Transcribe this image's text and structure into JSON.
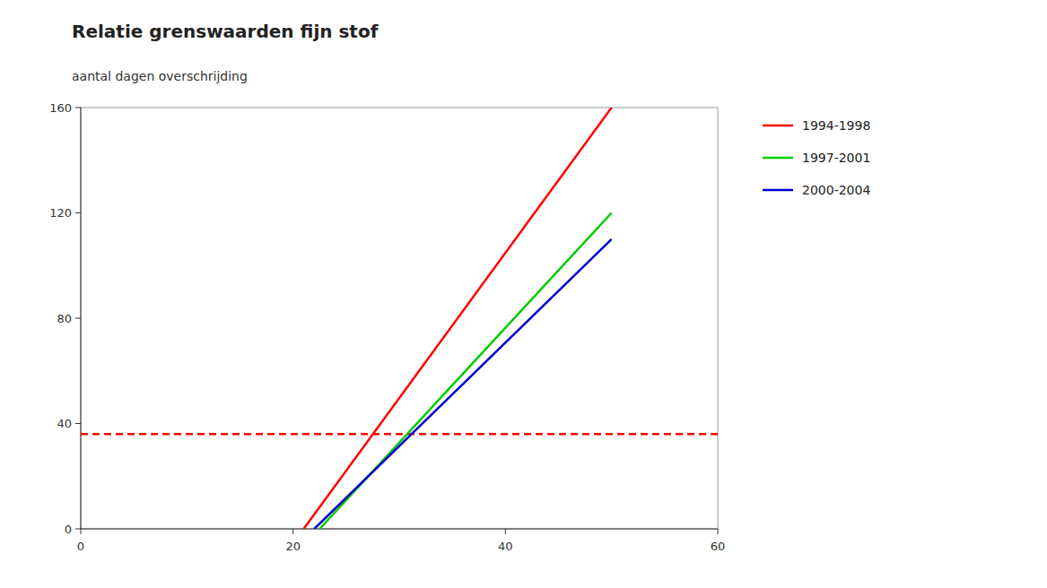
{
  "chart_data": {
    "type": "line",
    "title": "Relatie grenswaarden fijn stof",
    "y_label": "aantal dagen overschrijding",
    "series": [
      {
        "name": "1994-1998",
        "color": "#ff0000",
        "x": [
          21.0,
          50.0
        ],
        "values": [
          0,
          160
        ],
        "line_style": "solid"
      },
      {
        "name": "1997-2001",
        "color": "#00cc00",
        "x": [
          22.5,
          50.0
        ],
        "values": [
          0,
          120
        ],
        "line_style": "solid"
      },
      {
        "name": "2000-2004",
        "color": "#0000cc",
        "x": [
          22.0,
          50.0
        ],
        "values": [
          0,
          110
        ],
        "line_style": "solid"
      }
    ],
    "reference_lines": [
      {
        "y": 36,
        "color": "#ff0000",
        "line_style": "dashed"
      }
    ],
    "xlim": [
      0,
      60
    ],
    "ylim": [
      0,
      160
    ],
    "xticks": [
      0,
      20,
      40,
      60
    ],
    "yticks": [
      0,
      40,
      80,
      120,
      160
    ],
    "grid": false,
    "legend": "right"
  }
}
